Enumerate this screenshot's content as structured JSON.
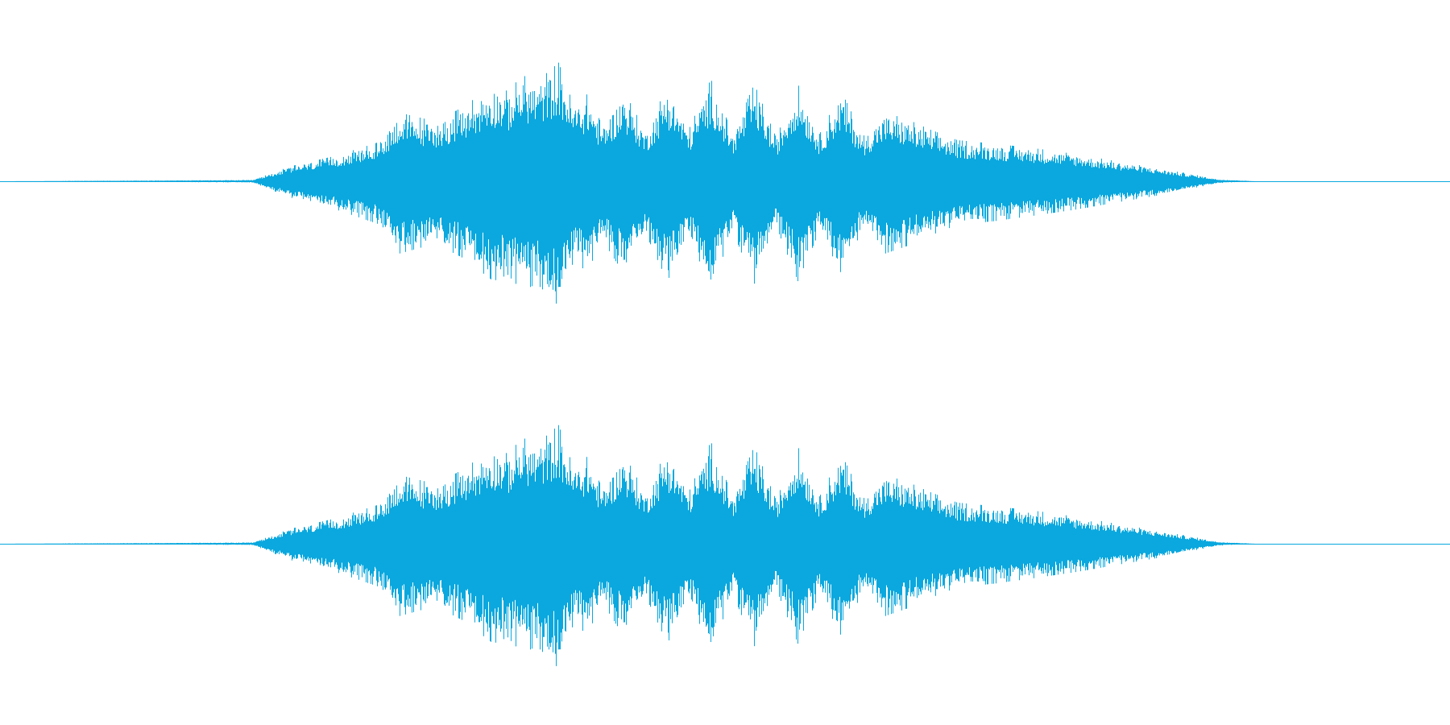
{
  "colors": {
    "background": "#ffffff",
    "waveform": "#0aa8de"
  },
  "chart_data": {
    "type": "area",
    "title": "",
    "xlabel": "",
    "ylabel": "",
    "grid": false,
    "axes_visible": false,
    "x_range": [
      0,
      1
    ],
    "y_range": [
      -1,
      1
    ],
    "channels": [
      {
        "name": "",
        "identical_to": null
      },
      {
        "name": "",
        "identical_to": 0
      }
    ],
    "envelope": {
      "x": [
        0.0,
        0.174,
        0.2,
        0.23,
        0.26,
        0.275,
        0.3,
        0.32,
        0.34,
        0.35,
        0.36,
        0.37,
        0.385,
        0.395,
        0.405,
        0.415,
        0.43,
        0.445,
        0.46,
        0.475,
        0.49,
        0.505,
        0.52,
        0.535,
        0.55,
        0.565,
        0.58,
        0.595,
        0.61,
        0.625,
        0.64,
        0.66,
        0.685,
        0.71,
        0.74,
        0.77,
        0.8,
        0.825,
        0.84,
        0.866,
        1.0
      ],
      "upper": [
        0.0,
        0.01,
        0.12,
        0.2,
        0.31,
        0.55,
        0.48,
        0.6,
        0.78,
        0.72,
        0.85,
        0.8,
        0.95,
        0.62,
        0.7,
        0.45,
        0.72,
        0.4,
        0.76,
        0.42,
        0.82,
        0.38,
        0.78,
        0.35,
        0.78,
        0.38,
        0.72,
        0.36,
        0.55,
        0.5,
        0.42,
        0.33,
        0.3,
        0.27,
        0.22,
        0.16,
        0.1,
        0.05,
        0.015,
        0.0,
        0.0
      ],
      "lower": [
        0.0,
        -0.01,
        -0.13,
        -0.22,
        -0.34,
        -0.58,
        -0.5,
        -0.62,
        -0.8,
        -0.75,
        -0.88,
        -0.82,
        -1.0,
        -0.65,
        -0.72,
        -0.47,
        -0.74,
        -0.42,
        -0.8,
        -0.44,
        -0.86,
        -0.4,
        -0.82,
        -0.36,
        -0.8,
        -0.4,
        -0.74,
        -0.38,
        -0.58,
        -0.52,
        -0.44,
        -0.35,
        -0.32,
        -0.28,
        -0.23,
        -0.17,
        -0.11,
        -0.05,
        -0.015,
        0.0,
        0.0
      ]
    }
  }
}
